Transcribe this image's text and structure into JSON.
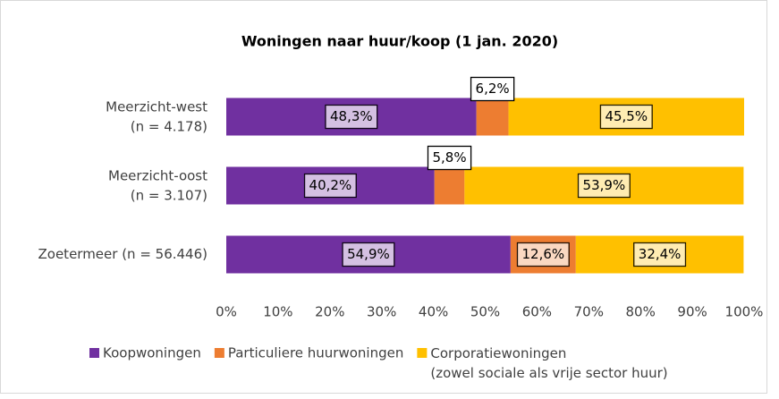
{
  "chart_data": {
    "type": "stacked_barh",
    "title": "Woningen naar huur/koop (1 jan. 2020)",
    "categories": [
      "Meerzicht-west\n(n = 4.178)",
      "Meerzicht-oost\n(n = 3.107)",
      "Zoetermeer (n = 56.446)"
    ],
    "series": [
      {
        "name": "Koopwoningen",
        "color": "#7030a0",
        "values": [
          48.3,
          40.2,
          54.9
        ],
        "value_labels": [
          "48,3%",
          "40,2%",
          "54,9%"
        ]
      },
      {
        "name": "Particuliere huurwoningen",
        "color": "#ed7d31",
        "values": [
          6.2,
          5.8,
          12.6
        ],
        "value_labels": [
          "6,2%",
          "5,8%",
          "12,6%"
        ]
      },
      {
        "name": "Corporatiewoningen\n(zowel sociale als vrije sector huur)",
        "color": "#ffc000",
        "values": [
          45.5,
          53.9,
          32.4
        ],
        "value_labels": [
          "45,5%",
          "53,9%",
          "32,4%"
        ]
      }
    ],
    "xlim": [
      0,
      100
    ],
    "xticks": [
      {
        "value": 0,
        "label": "0%"
      },
      {
        "value": 10,
        "label": "10%"
      },
      {
        "value": 20,
        "label": "20%"
      },
      {
        "value": 30,
        "label": "30%"
      },
      {
        "value": 40,
        "label": "40%"
      },
      {
        "value": 50,
        "label": "50%"
      },
      {
        "value": 60,
        "label": "60%"
      },
      {
        "value": 70,
        "label": "70%"
      },
      {
        "value": 80,
        "label": "80%"
      },
      {
        "value": 90,
        "label": "90%"
      },
      {
        "value": 100,
        "label": "100%"
      }
    ],
    "grid": false,
    "legend": "bottom"
  }
}
